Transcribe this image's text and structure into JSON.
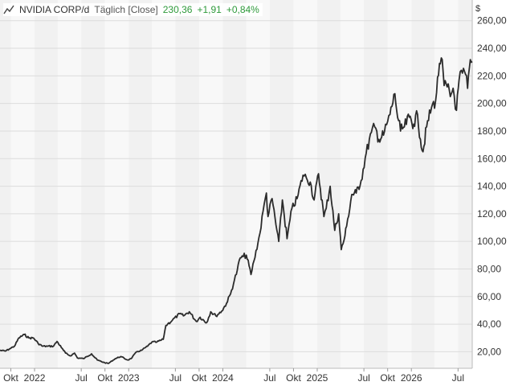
{
  "header": {
    "symbol": "NVIDIA CORP/d",
    "interval": "Täglich [Close]",
    "last": "230,36",
    "change": "+1,91",
    "change_pct": "+0,84%",
    "accent_color": "#2e9a3a"
  },
  "chart_data": {
    "type": "line",
    "currency_label": "$",
    "ylim": [
      8,
      275
    ],
    "ytick_values": [
      20,
      40,
      60,
      80,
      100,
      120,
      140,
      160,
      180,
      200,
      220,
      240,
      260
    ],
    "ytick_labels": [
      "20,00",
      "40,00",
      "60,00",
      "80,00",
      "100,00",
      "120,00",
      "140,00",
      "160,00",
      "180,00",
      "200,00",
      "220,00",
      "240,00",
      "260,00"
    ],
    "xlim": [
      "2021-08-20",
      "2026-08-25"
    ],
    "xticks": [
      {
        "date": "2021-10-01",
        "label": "Okt"
      },
      {
        "date": "2022-01-01",
        "label": "2022"
      },
      {
        "date": "2022-07-01",
        "label": "Jul"
      },
      {
        "date": "2022-10-01",
        "label": "Okt"
      },
      {
        "date": "2023-01-01",
        "label": "2023"
      },
      {
        "date": "2023-07-01",
        "label": "Jul"
      },
      {
        "date": "2023-10-01",
        "label": "Okt"
      },
      {
        "date": "2024-01-01",
        "label": "2024"
      },
      {
        "date": "2024-07-01",
        "label": "Jul"
      },
      {
        "date": "2024-10-01",
        "label": "Okt"
      },
      {
        "date": "2025-01-01",
        "label": "2025"
      },
      {
        "date": "2025-07-01",
        "label": "Jul"
      },
      {
        "date": "2025-10-01",
        "label": "Okt"
      },
      {
        "date": "2026-01-01",
        "label": "2026"
      },
      {
        "date": "2026-07-01",
        "label": "Jul"
      }
    ],
    "grid": true,
    "line_color": "#2b2b2b",
    "series": [
      {
        "name": "",
        "points": [
          [
            "2021-08-20",
            21
          ],
          [
            "2021-09-10",
            20.5
          ],
          [
            "2021-09-25",
            22
          ],
          [
            "2021-10-15",
            24
          ],
          [
            "2021-11-01",
            30
          ],
          [
            "2021-11-22",
            32.5
          ],
          [
            "2021-12-10",
            30
          ],
          [
            "2021-12-28",
            30
          ],
          [
            "2022-01-15",
            26
          ],
          [
            "2022-02-01",
            24
          ],
          [
            "2022-02-20",
            24
          ],
          [
            "2022-03-15",
            24
          ],
          [
            "2022-03-29",
            27.5
          ],
          [
            "2022-04-15",
            23
          ],
          [
            "2022-05-01",
            19
          ],
          [
            "2022-05-20",
            17
          ],
          [
            "2022-06-05",
            19
          ],
          [
            "2022-06-16",
            15.5
          ],
          [
            "2022-07-10",
            15
          ],
          [
            "2022-08-10",
            18.5
          ],
          [
            "2022-09-01",
            14
          ],
          [
            "2022-09-30",
            12
          ],
          [
            "2022-10-14",
            11.5
          ],
          [
            "2022-11-10",
            15
          ],
          [
            "2022-12-01",
            16.5
          ],
          [
            "2022-12-28",
            14
          ],
          [
            "2023-01-10",
            15
          ],
          [
            "2023-02-01",
            20
          ],
          [
            "2023-02-20",
            21
          ],
          [
            "2023-03-15",
            24
          ],
          [
            "2023-04-01",
            27
          ],
          [
            "2023-04-20",
            27
          ],
          [
            "2023-05-15",
            29
          ],
          [
            "2023-05-25",
            39
          ],
          [
            "2023-06-01",
            40
          ],
          [
            "2023-06-20",
            43
          ],
          [
            "2023-07-18",
            47.5
          ],
          [
            "2023-08-01",
            46
          ],
          [
            "2023-08-24",
            49
          ],
          [
            "2023-09-20",
            42
          ],
          [
            "2023-10-05",
            45
          ],
          [
            "2023-10-30",
            41
          ],
          [
            "2023-11-15",
            49
          ],
          [
            "2023-12-05",
            46
          ],
          [
            "2023-12-28",
            49.5
          ],
          [
            "2024-01-15",
            55
          ],
          [
            "2024-01-31",
            62
          ],
          [
            "2024-02-15",
            72
          ],
          [
            "2024-02-26",
            79
          ],
          [
            "2024-03-08",
            88
          ],
          [
            "2024-03-20",
            89
          ],
          [
            "2024-04-01",
            90
          ],
          [
            "2024-04-19",
            76
          ],
          [
            "2024-05-01",
            86
          ],
          [
            "2024-05-24",
            106
          ],
          [
            "2024-06-05",
            122
          ],
          [
            "2024-06-18",
            135
          ],
          [
            "2024-06-24",
            118
          ],
          [
            "2024-07-10",
            131
          ],
          [
            "2024-07-25",
            112
          ],
          [
            "2024-08-05",
            100
          ],
          [
            "2024-08-19",
            130
          ],
          [
            "2024-09-06",
            102
          ],
          [
            "2024-09-25",
            124
          ],
          [
            "2024-10-15",
            131
          ],
          [
            "2024-11-07",
            148
          ],
          [
            "2024-11-20",
            146
          ],
          [
            "2024-12-05",
            143
          ],
          [
            "2024-12-20",
            130
          ],
          [
            "2025-01-06",
            149
          ],
          [
            "2025-01-27",
            118
          ],
          [
            "2025-02-05",
            124
          ],
          [
            "2025-02-20",
            140
          ],
          [
            "2025-03-10",
            108
          ],
          [
            "2025-03-25",
            120
          ],
          [
            "2025-04-04",
            94
          ],
          [
            "2025-04-15",
            101
          ],
          [
            "2025-04-25",
            111
          ],
          [
            "2025-05-15",
            134
          ],
          [
            "2025-06-01",
            135
          ],
          [
            "2025-06-20",
            144
          ],
          [
            "2025-07-10",
            164
          ],
          [
            "2025-07-30",
            179
          ],
          [
            "2025-08-12",
            183
          ],
          [
            "2025-08-28",
            174
          ],
          [
            "2025-09-15",
            177
          ],
          [
            "2025-10-01",
            187
          ],
          [
            "2025-10-10",
            192
          ],
          [
            "2025-10-29",
            207
          ],
          [
            "2025-11-05",
            195
          ],
          [
            "2025-11-20",
            180
          ],
          [
            "2025-12-05",
            183
          ],
          [
            "2025-12-24",
            190
          ],
          [
            "2026-01-10",
            185
          ],
          [
            "2026-01-25",
            192
          ],
          [
            "2026-02-05",
            174
          ],
          [
            "2026-02-15",
            165
          ],
          [
            "2026-03-01",
            183
          ],
          [
            "2026-03-20",
            197
          ],
          [
            "2026-04-05",
            202
          ],
          [
            "2026-04-20",
            229
          ],
          [
            "2026-04-27",
            233
          ],
          [
            "2026-05-08",
            213
          ],
          [
            "2026-05-20",
            212
          ],
          [
            "2026-06-01",
            205
          ],
          [
            "2026-06-12",
            211
          ],
          [
            "2026-06-25",
            195
          ],
          [
            "2026-07-05",
            217
          ],
          [
            "2026-07-18",
            222
          ],
          [
            "2026-07-30",
            221
          ],
          [
            "2026-08-07",
            211
          ],
          [
            "2026-08-14",
            226
          ],
          [
            "2026-08-25",
            230.36
          ]
        ]
      }
    ]
  }
}
